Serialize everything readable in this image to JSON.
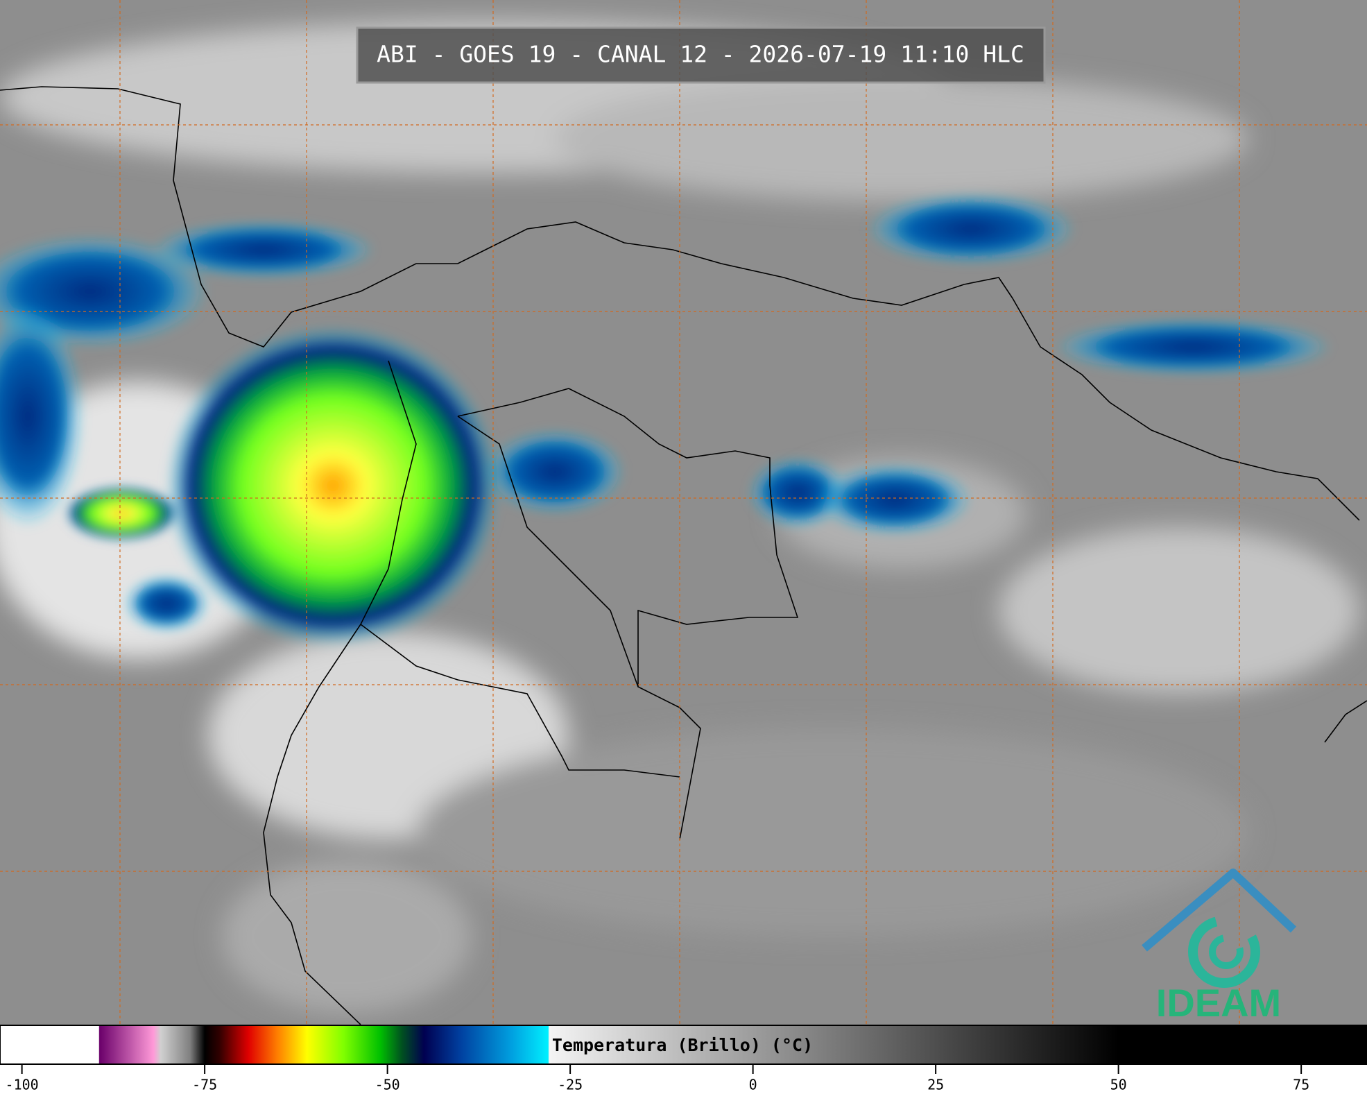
{
  "header": {
    "title": "ABI - GOES 19 - CANAL 12 - 2026-07-19 11:10 HLC"
  },
  "colorbar": {
    "label": "Temperatura (Brillo) (°C)",
    "range": [
      -103,
      84
    ],
    "ticks": [
      -100,
      -75,
      -50,
      -25,
      0,
      25,
      50,
      75
    ],
    "stops": [
      {
        "value": -103,
        "color": "#ffffff"
      },
      {
        "value": -89.5,
        "color": "#ffffff"
      },
      {
        "value": -89.4,
        "color": "#6a006a"
      },
      {
        "value": -82,
        "color": "#ff9ad8"
      },
      {
        "value": -81,
        "color": "#d0d0d0"
      },
      {
        "value": -77,
        "color": "#808080"
      },
      {
        "value": -75,
        "color": "#000000"
      },
      {
        "value": -73,
        "color": "#300000"
      },
      {
        "value": -69,
        "color": "#e00000"
      },
      {
        "value": -65,
        "color": "#ff8000"
      },
      {
        "value": -61,
        "color": "#ffff00"
      },
      {
        "value": -56,
        "color": "#80ff00"
      },
      {
        "value": -51,
        "color": "#00c000"
      },
      {
        "value": -48,
        "color": "#005020"
      },
      {
        "value": -45,
        "color": "#000050"
      },
      {
        "value": -40,
        "color": "#0040a0"
      },
      {
        "value": -33,
        "color": "#00a0e0"
      },
      {
        "value": -28,
        "color": "#00f0ff"
      },
      {
        "value": -27.9,
        "color": "#f4f4f4"
      },
      {
        "value": 50,
        "color": "#000000"
      },
      {
        "value": 84,
        "color": "#000000"
      }
    ]
  },
  "logo": {
    "text": "IDEAM"
  }
}
